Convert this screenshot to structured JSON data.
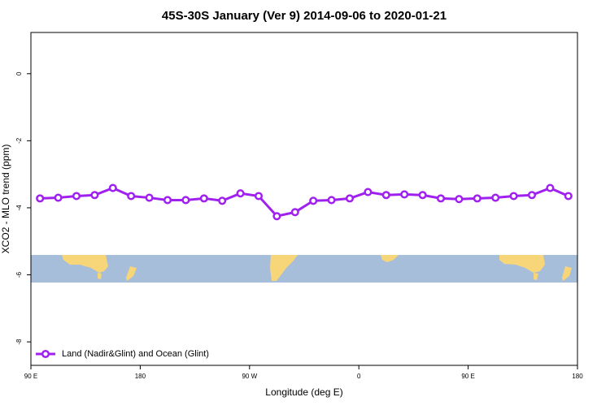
{
  "chart_data": {
    "type": "line",
    "title": "45S-30S January (Ver 9)   2014-09-06 to 2020-01-21",
    "x_label": "Longitude (deg E)",
    "y_label": "XCO2 - MLO trend (ppm)",
    "x": [
      97.5,
      112.5,
      127.5,
      142.5,
      157.5,
      172.5,
      187.5,
      202.5,
      217.5,
      232.5,
      247.5,
      262.5,
      277.5,
      292.5,
      307.5,
      322.5,
      337.5,
      352.5,
      367.5,
      382.5,
      397.5,
      412.5,
      427.5,
      442.5,
      457.5,
      472.5,
      487.5,
      502.5,
      517.5,
      532.5
    ],
    "series": [
      {
        "name": "Land (Nadir&Glint) and Ocean (Glint)",
        "color": "#a020f0",
        "values": [
          -3.72,
          -3.7,
          -3.65,
          -3.62,
          -3.41,
          -3.65,
          -3.7,
          -3.77,
          -3.77,
          -3.72,
          -3.79,
          -3.57,
          -3.65,
          -4.25,
          -4.13,
          -3.79,
          -3.77,
          -3.72,
          -3.53,
          -3.62,
          -3.6,
          -3.62,
          -3.72,
          -3.74,
          -3.72,
          -3.7,
          -3.65,
          -3.62,
          -3.41,
          -3.65
        ]
      }
    ],
    "xlim": [
      90,
      540
    ],
    "xticks": [
      {
        "value": 90,
        "label": "90 E"
      },
      {
        "value": 180,
        "label": "180"
      },
      {
        "value": 270,
        "label": "90 W"
      },
      {
        "value": 360,
        "label": "0"
      },
      {
        "value": 450,
        "label": "90 E"
      },
      {
        "value": 540,
        "label": "180"
      }
    ],
    "ylim": [
      -8.7,
      1.23
    ],
    "yticks": [
      0,
      -2,
      -4,
      -6,
      -8
    ],
    "legend": "bottom-left"
  }
}
